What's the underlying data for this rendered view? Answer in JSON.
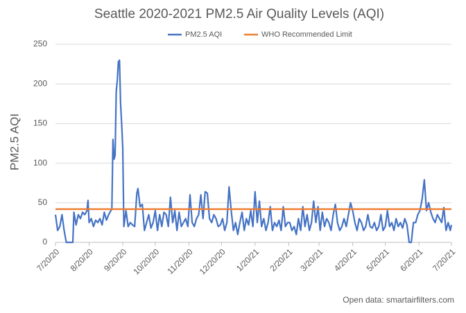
{
  "chart_data": {
    "type": "line",
    "title": "Seattle 2020-2021 PM2.5 Air Quality Levels (AQI)",
    "y_label": "PM2.5 AQI",
    "source": "Open data: smartairfilters.com",
    "x": [
      "7/20/20",
      "7/22/20",
      "7/24/20",
      "7/26/20",
      "7/28/20",
      "7/30/20",
      "8/1/20",
      "8/3/20",
      "8/5/20",
      "8/6/20",
      "8/8/20",
      "8/10/20",
      "8/12/20",
      "8/14/20",
      "8/16/20",
      "8/18/20",
      "8/19/20",
      "8/20/20",
      "8/22/20",
      "8/24/20",
      "8/26/20",
      "8/28/20",
      "8/30/20",
      "9/1/20",
      "9/3/20",
      "9/5/20",
      "9/7/20",
      "9/9/20",
      "9/10/20",
      "9/11/20",
      "9/12/20",
      "9/13/20",
      "9/14/20",
      "9/15/20",
      "9/16/20",
      "9/17/20",
      "9/18/20",
      "9/19/20",
      "9/20/20",
      "9/21/20",
      "9/23/20",
      "9/25/20",
      "9/27/20",
      "9/29/20",
      "10/1/20",
      "10/3/20",
      "10/4/20",
      "10/6/20",
      "10/8/20",
      "10/10/20",
      "10/12/20",
      "10/14/20",
      "10/16/20",
      "10/18/20",
      "10/20/20",
      "10/22/20",
      "10/24/20",
      "10/26/20",
      "10/28/20",
      "10/30/20",
      "11/1/20",
      "11/3/20",
      "11/5/20",
      "11/7/20",
      "11/9/20",
      "11/11/20",
      "11/13/20",
      "11/15/20",
      "11/17/20",
      "11/19/20",
      "11/21/20",
      "11/23/20",
      "11/25/20",
      "11/27/20",
      "11/29/20",
      "12/1/20",
      "12/3/20",
      "12/5/20",
      "12/7/20",
      "12/9/20",
      "12/11/20",
      "12/13/20",
      "12/15/20",
      "12/17/20",
      "12/19/20",
      "12/21/20",
      "12/23/20",
      "12/25/20",
      "12/27/20",
      "12/29/20",
      "12/31/20",
      "1/2/21",
      "1/4/21",
      "1/6/21",
      "1/8/21",
      "1/10/21",
      "1/12/21",
      "1/14/21",
      "1/16/21",
      "1/18/21",
      "1/20/21",
      "1/22/21",
      "1/24/21",
      "1/26/21",
      "1/28/21",
      "1/30/21",
      "2/1/21",
      "2/3/21",
      "2/5/21",
      "2/7/21",
      "2/9/21",
      "2/11/21",
      "2/13/21",
      "2/15/21",
      "2/17/21",
      "2/19/21",
      "2/21/21",
      "2/23/21",
      "2/25/21",
      "2/27/21",
      "3/1/21",
      "3/3/21",
      "3/5/21",
      "3/7/21",
      "3/9/21",
      "3/11/21",
      "3/13/21",
      "3/15/21",
      "3/17/21",
      "3/19/21",
      "3/21/21",
      "3/23/21",
      "3/25/21",
      "3/27/21",
      "3/29/21",
      "3/31/21",
      "4/2/21",
      "4/4/21",
      "4/6/21",
      "4/8/21",
      "4/10/21",
      "4/12/21",
      "4/14/21",
      "4/16/21",
      "4/18/21",
      "4/20/21",
      "4/22/21",
      "4/24/21",
      "4/26/21",
      "4/28/21",
      "4/30/21",
      "5/2/21",
      "5/4/21",
      "5/6/21",
      "5/8/21",
      "5/10/21",
      "5/12/21",
      "5/14/21",
      "5/16/21",
      "5/18/21",
      "5/20/21",
      "5/22/21",
      "5/24/21",
      "5/26/21",
      "5/28/21",
      "5/30/21",
      "6/1/21",
      "6/3/21",
      "6/5/21",
      "6/7/21",
      "6/9/21",
      "6/11/21",
      "6/13/21",
      "6/15/21",
      "6/17/21",
      "6/19/21",
      "6/21/21",
      "6/23/21",
      "6/25/21",
      "6/27/21",
      "6/29/21",
      "7/1/21",
      "7/3/21",
      "7/5/21",
      "7/7/21",
      "7/9/21",
      "7/11/21",
      "7/13/21",
      "7/15/21",
      "7/17/21",
      "7/19/21",
      "7/20/21"
    ],
    "series": [
      {
        "name": "PM2.5 AQI",
        "color": "#4472c4",
        "values": [
          35,
          15,
          20,
          35,
          15,
          0,
          0,
          0,
          0,
          38,
          22,
          35,
          30,
          38,
          35,
          40,
          53,
          25,
          30,
          20,
          28,
          25,
          30,
          22,
          38,
          28,
          35,
          40,
          42,
          130,
          105,
          110,
          190,
          205,
          228,
          230,
          175,
          150,
          120,
          20,
          40,
          20,
          25,
          22,
          20,
          62,
          68,
          45,
          48,
          15,
          25,
          35,
          18,
          25,
          40,
          15,
          35,
          20,
          38,
          35,
          20,
          57,
          25,
          40,
          15,
          38,
          20,
          25,
          30,
          20,
          60,
          25,
          20,
          30,
          35,
          60,
          30,
          64,
          62,
          30,
          25,
          35,
          30,
          20,
          22,
          30,
          15,
          25,
          70,
          40,
          15,
          25,
          10,
          25,
          38,
          15,
          30,
          22,
          40,
          20,
          64,
          25,
          52,
          20,
          30,
          15,
          25,
          45,
          15,
          25,
          20,
          28,
          15,
          45,
          20,
          25,
          25,
          15,
          20,
          10,
          30,
          15,
          45,
          20,
          35,
          15,
          25,
          52,
          25,
          45,
          15,
          38,
          20,
          30,
          25,
          15,
          35,
          48,
          25,
          15,
          20,
          30,
          20,
          35,
          50,
          40,
          25,
          15,
          30,
          25,
          15,
          20,
          35,
          20,
          18,
          25,
          15,
          20,
          35,
          15,
          20,
          40,
          20,
          25,
          15,
          30,
          20,
          25,
          18,
          30,
          22,
          0,
          0,
          25,
          25,
          35,
          40,
          55,
          79,
          40,
          50,
          38,
          30,
          25,
          35,
          30,
          25,
          44,
          15,
          25,
          15,
          22
        ]
      },
      {
        "name": "WHO Recommended Limit",
        "color": "#ed7d31",
        "x": [
          "7/20/20",
          "7/20/21"
        ],
        "values": [
          42,
          42
        ]
      }
    ],
    "xlim": [
      "7/20/20",
      "7/20/21"
    ],
    "xticks": [
      "7/20/20",
      "8/20/20",
      "9/20/20",
      "10/20/20",
      "11/20/20",
      "12/20/20",
      "1/20/21",
      "2/20/21",
      "3/20/21",
      "4/20/21",
      "5/20/21",
      "6/20/21",
      "7/20/21"
    ],
    "ylim": [
      0,
      250
    ],
    "yticks": [
      0,
      50,
      100,
      150,
      200,
      250
    ],
    "grid": true,
    "legend": "top"
  }
}
